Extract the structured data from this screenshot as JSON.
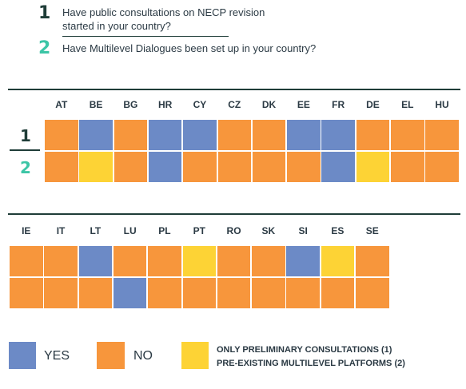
{
  "questions": [
    {
      "number": "1",
      "line1": "Have public consultations on NECP revision",
      "line2": "started in your country?"
    },
    {
      "number": "2",
      "line1": "Have Multilevel Dialogues been set up in your country?"
    }
  ],
  "colors": {
    "yes": "#6c8ac6",
    "no": "#f7963c",
    "partial": "#fdd335",
    "q1": "#1f3d38",
    "q2": "#3cc5a6"
  },
  "legend": {
    "yes": "YES",
    "no": "NO",
    "partial_line1": "ONLY PRELIMINARY CONSULTATIONS (1)",
    "partial_line2": "PRE-EXISTING MULTILEVEL PLATFORMS (2)"
  },
  "chart_data": {
    "type": "table",
    "rows": [
      "1",
      "2"
    ],
    "blocks": [
      {
        "countries": [
          "AT",
          "BE",
          "BG",
          "HR",
          "CY",
          "CZ",
          "DK",
          "EE",
          "FR",
          "DE",
          "EL",
          "HU"
        ],
        "q1": [
          "no",
          "yes",
          "no",
          "yes",
          "yes",
          "no",
          "no",
          "yes",
          "yes",
          "no",
          "no",
          "no"
        ],
        "q2": [
          "no",
          "partial",
          "no",
          "yes",
          "no",
          "no",
          "no",
          "no",
          "yes",
          "partial",
          "no",
          "no"
        ]
      },
      {
        "countries": [
          "IE",
          "IT",
          "LT",
          "LU",
          "PL",
          "PT",
          "RO",
          "SK",
          "SI",
          "ES",
          "SE"
        ],
        "q1": [
          "no",
          "no",
          "yes",
          "no",
          "no",
          "partial",
          "no",
          "no",
          "yes",
          "partial",
          "no"
        ],
        "q2": [
          "no",
          "no",
          "no",
          "yes",
          "no",
          "no",
          "no",
          "no",
          "no",
          "no",
          "no"
        ]
      }
    ]
  }
}
